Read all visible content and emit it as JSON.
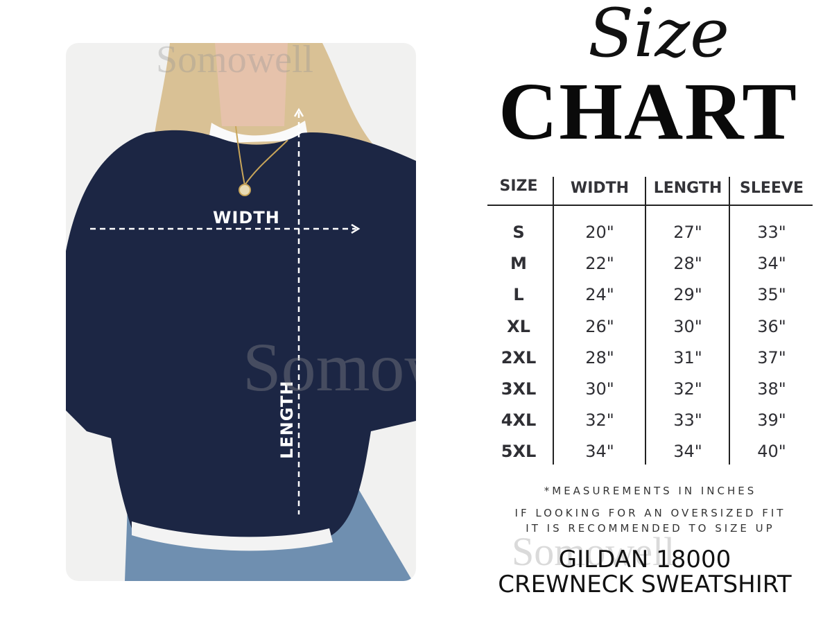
{
  "title": {
    "script": "Size",
    "main": "CHART"
  },
  "photo": {
    "width_label": "WIDTH",
    "length_label": "LENGTH",
    "watermark": "Somowell",
    "garment_color": "#1c2644"
  },
  "table": {
    "headers": [
      "SIZE",
      "WIDTH",
      "LENGTH",
      "SLEEVE"
    ],
    "rows": [
      [
        "S",
        "20\"",
        "27\"",
        "33\""
      ],
      [
        "M",
        "22\"",
        "28\"",
        "34\""
      ],
      [
        "L",
        "24\"",
        "29\"",
        "35\""
      ],
      [
        "XL",
        "26\"",
        "30\"",
        "36\""
      ],
      [
        "2XL",
        "28\"",
        "31\"",
        "37\""
      ],
      [
        "3XL",
        "30\"",
        "32\"",
        "38\""
      ],
      [
        "4XL",
        "32\"",
        "33\"",
        "39\""
      ],
      [
        "5XL",
        "34\"",
        "34\"",
        "40\""
      ]
    ]
  },
  "notes": {
    "measurements": "*MEASUREMENTS IN INCHES",
    "fit_line1": "IF LOOKING FOR AN OVERSIZED FIT",
    "fit_line2": "IT IS RECOMMENDED TO SIZE UP"
  },
  "product": {
    "line1": "GILDAN 18000",
    "line2": "CREWNECK SWEATSHIRT"
  }
}
